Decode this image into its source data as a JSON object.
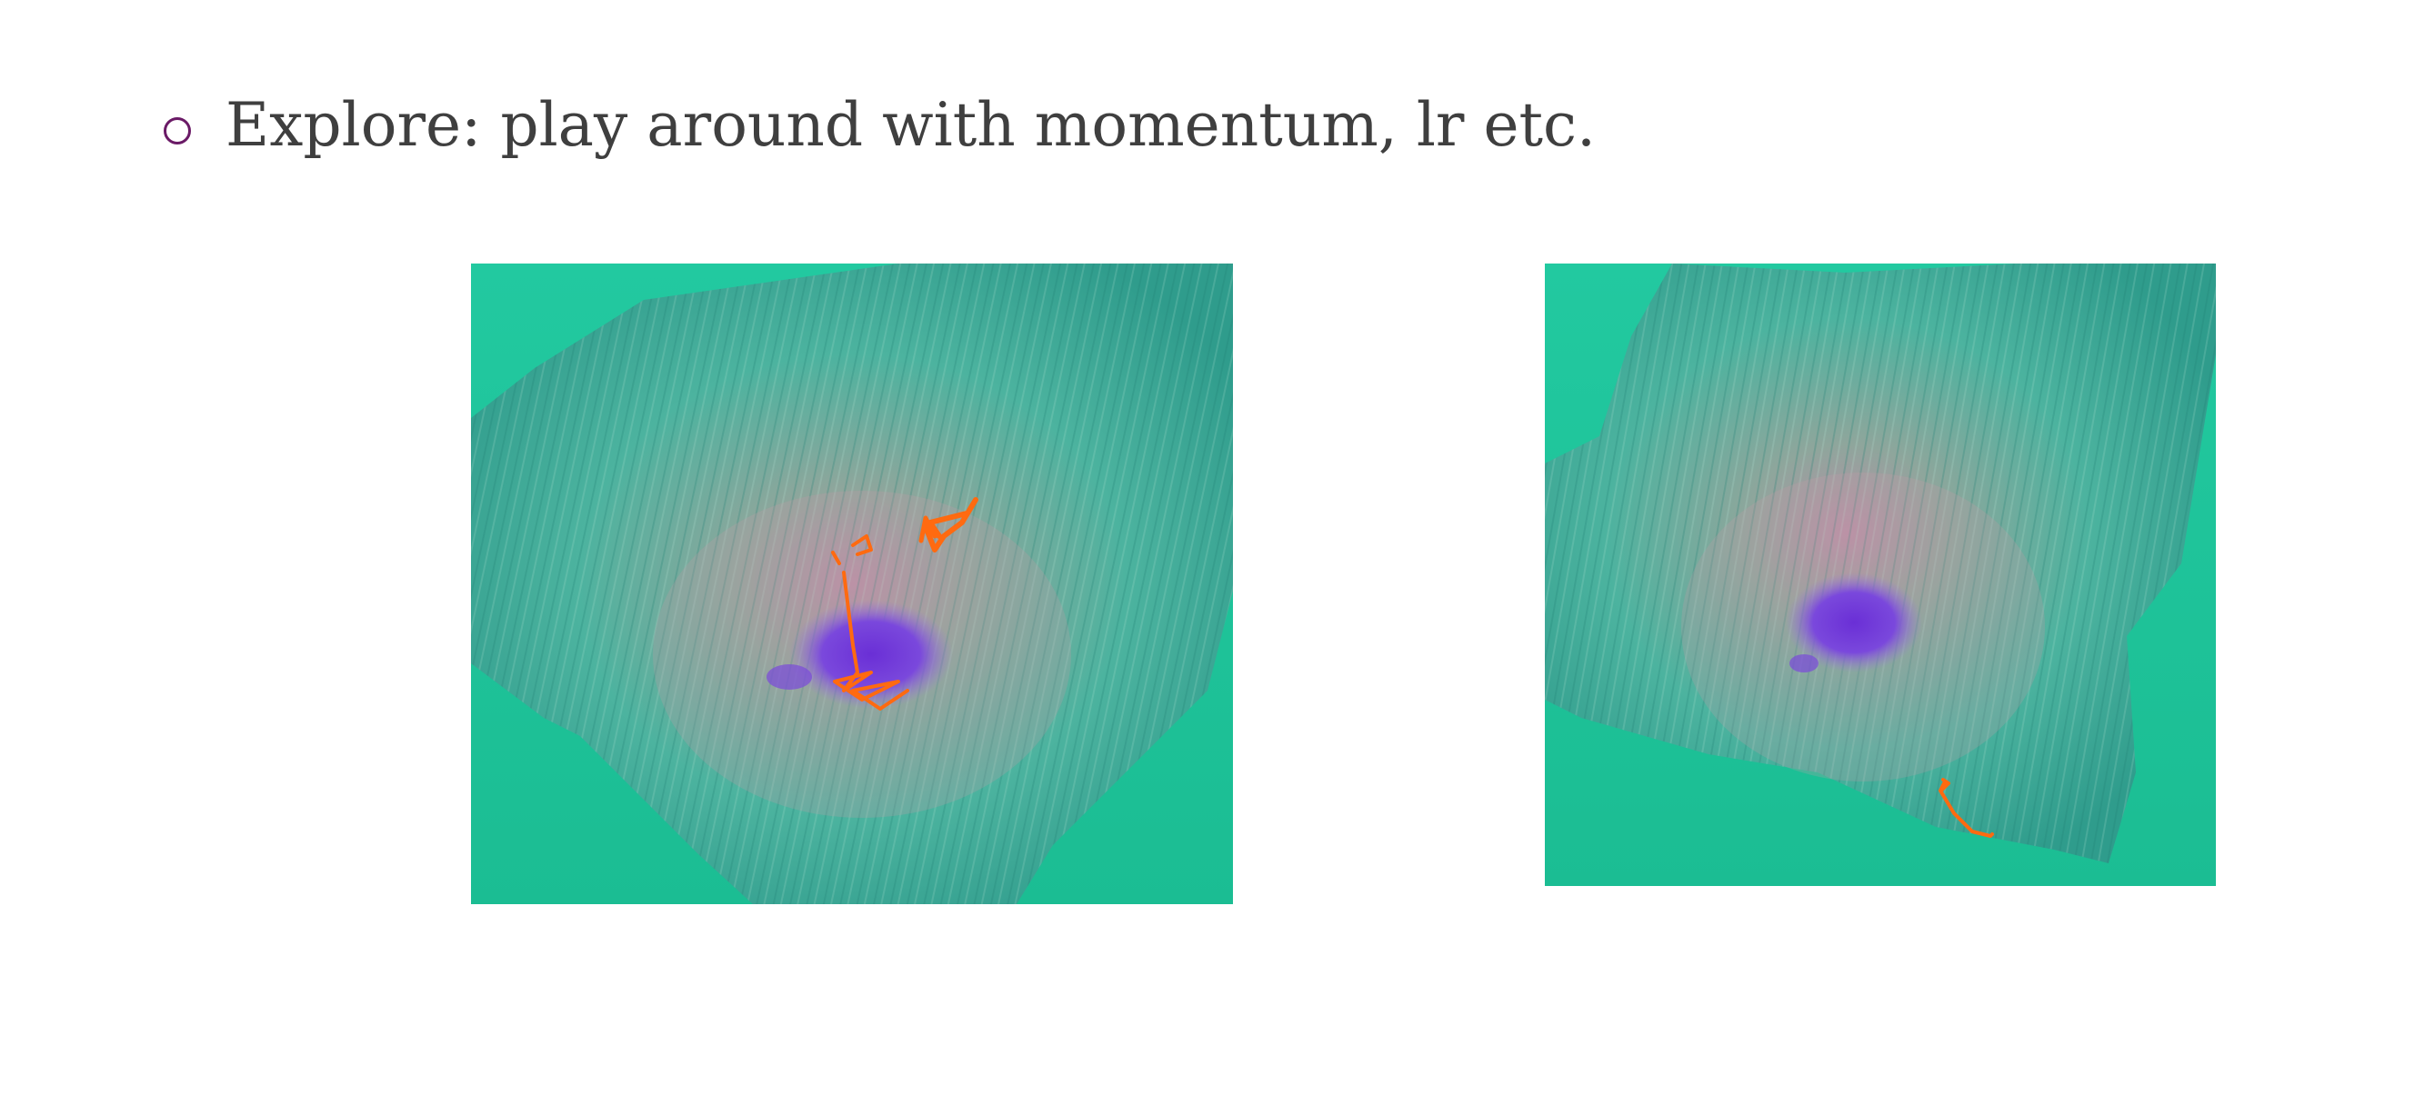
{
  "bullet": {
    "text": "Explore: play around with momentum, lr etc."
  },
  "colors": {
    "background": "#1fc59a",
    "terrain": "#3fae9a",
    "basin": "#7a45d8",
    "trajectory": "#ff6a10",
    "bullet_marker": "#6a1a66",
    "text": "#3f3f3f"
  },
  "figures": [
    {
      "name": "loss-landscape-left",
      "trajectory": "multiple paths converging near basin"
    },
    {
      "name": "loss-landscape-right",
      "trajectory": "single path far from basin"
    }
  ]
}
